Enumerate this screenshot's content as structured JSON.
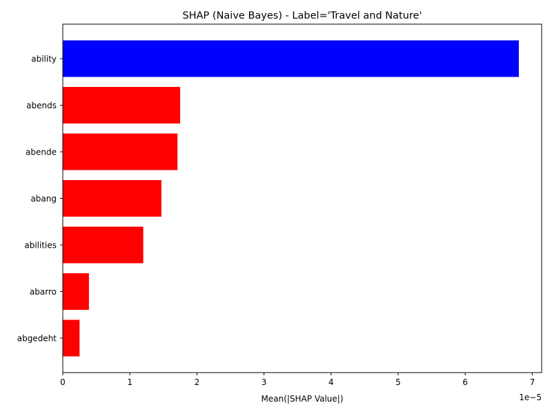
{
  "chart_data": {
    "type": "bar",
    "orientation": "horizontal",
    "title": "SHAP (Naive Bayes) - Label='Travel and Nature'",
    "xlabel": "Mean(|SHAP Value|)",
    "ylabel": "",
    "x_offset_label": "1e−5",
    "x_scale": 1e-05,
    "categories": [
      "ability",
      "abends",
      "abende",
      "abang",
      "abilities",
      "abarro",
      "abgedeht"
    ],
    "values": [
      6.8e-05,
      1.75e-05,
      1.71e-05,
      1.47e-05,
      1.2e-05,
      3.9e-06,
      2.5e-06
    ],
    "bar_colors": [
      "#0000ff",
      "#ff0000",
      "#ff0000",
      "#ff0000",
      "#ff0000",
      "#ff0000",
      "#ff0000"
    ],
    "x_ticks": [
      0,
      1,
      2,
      3,
      4,
      5,
      6,
      7
    ],
    "xlim": [
      0,
      7.14
    ],
    "grid": false,
    "legend": "none"
  }
}
